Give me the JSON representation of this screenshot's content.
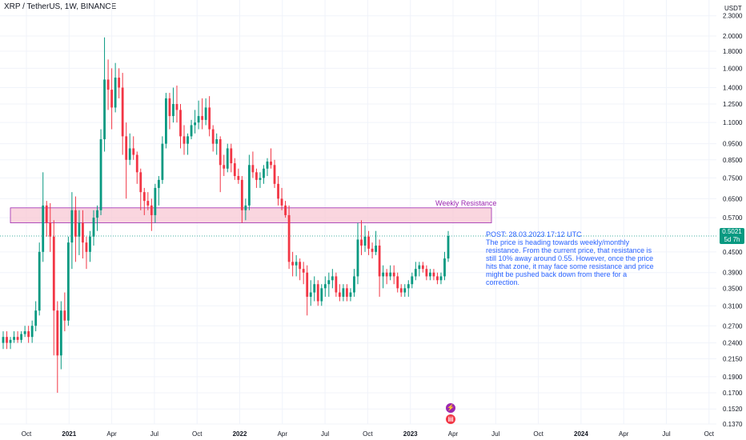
{
  "header": {
    "title": "XRP / TetherUS, 1W, BINANCE",
    "axis_unit": "USDT"
  },
  "colors": {
    "up": "#089981",
    "down": "#f23645",
    "resistance_fill": "#f8c8d4",
    "resistance_border": "#9c27b0",
    "annotation": "#2962ff",
    "current_line": "#089981"
  },
  "resistance": {
    "label": "Weekly Resistance",
    "low": 0.55,
    "high": 0.61
  },
  "current_price": {
    "value": "0.5021",
    "countdown": "5d 7h",
    "level": 0.5021
  },
  "annotation": {
    "title": "POST: 28.03.2023 17:12 UTC",
    "text": "The price is heading towards weekly/monthly resistance. From the current price, that resistance is still 10% away around 0.55. However, once the price hits that zone, it may face some resistance and price might be pushed back down from there for a correction."
  },
  "icons": [
    {
      "name": "lightning-icon",
      "glyph": "⚡",
      "color": "#9c27b0"
    },
    {
      "name": "us-flag-icon",
      "glyph": "▤",
      "color": "#f23645"
    }
  ],
  "chart_data": {
    "type": "candlestick",
    "y_scale": "log",
    "ylim": [
      0.137,
      2.4
    ],
    "y_ticks": [
      "2.3000",
      "2.0000",
      "1.8000",
      "1.6000",
      "1.4000",
      "1.2500",
      "1.1000",
      "0.9500",
      "0.8500",
      "0.7500",
      "0.6500",
      "0.5700",
      "0.5021",
      "0.4500",
      "0.3900",
      "0.3500",
      "0.3100",
      "0.2700",
      "0.2400",
      "0.2150",
      "0.1900",
      "0.1700",
      "0.1520",
      "0.1370"
    ],
    "x_ticks": [
      "Oct",
      "2021",
      "Apr",
      "Jul",
      "Oct",
      "2022",
      "Apr",
      "Jul",
      "Oct",
      "2023",
      "Apr",
      "Jul",
      "Oct",
      "2024",
      "Apr",
      "Jul",
      "Oct"
    ],
    "series": [
      {
        "label": "2020-09",
        "candles": [
          [
            0.24,
            0.26,
            0.23,
            0.25
          ],
          [
            0.25,
            0.26,
            0.23,
            0.24
          ],
          [
            0.24,
            0.25,
            0.23,
            0.245
          ],
          [
            0.245,
            0.26,
            0.24,
            0.25
          ]
        ]
      },
      {
        "label": "2020-10",
        "candles": [
          [
            0.25,
            0.26,
            0.24,
            0.245
          ],
          [
            0.245,
            0.26,
            0.24,
            0.255
          ],
          [
            0.255,
            0.27,
            0.25,
            0.26
          ],
          [
            0.26,
            0.27,
            0.24,
            0.25
          ]
        ]
      },
      {
        "label": "2020-11",
        "candles": [
          [
            0.25,
            0.28,
            0.24,
            0.27
          ],
          [
            0.27,
            0.32,
            0.26,
            0.3
          ],
          [
            0.3,
            0.48,
            0.29,
            0.45
          ],
          [
            0.45,
            0.78,
            0.42,
            0.62
          ]
        ]
      },
      {
        "label": "2020-12",
        "candles": [
          [
            0.62,
            0.64,
            0.5,
            0.55
          ],
          [
            0.55,
            0.63,
            0.45,
            0.5
          ],
          [
            0.5,
            0.56,
            0.22,
            0.3
          ],
          [
            0.3,
            0.32,
            0.17,
            0.22
          ]
        ]
      },
      {
        "label": "2021-01",
        "candles": [
          [
            0.22,
            0.32,
            0.2,
            0.3
          ],
          [
            0.3,
            0.34,
            0.26,
            0.28
          ],
          [
            0.28,
            0.5,
            0.27,
            0.48
          ],
          [
            0.48,
            0.68,
            0.4,
            0.6
          ]
        ]
      },
      {
        "label": "2021-02",
        "candles": [
          [
            0.6,
            0.66,
            0.42,
            0.5
          ],
          [
            0.5,
            0.6,
            0.44,
            0.55
          ],
          [
            0.55,
            0.6,
            0.43,
            0.48
          ],
          [
            0.48,
            0.5,
            0.4,
            0.45
          ]
        ]
      },
      {
        "label": "2021-03",
        "candles": [
          [
            0.45,
            0.52,
            0.42,
            0.5
          ],
          [
            0.5,
            0.6,
            0.47,
            0.57
          ],
          [
            0.57,
            0.62,
            0.52,
            0.6
          ],
          [
            0.6,
            1.05,
            0.58,
            0.98
          ]
        ]
      },
      {
        "label": "2021-04",
        "candles": [
          [
            0.98,
            1.98,
            0.9,
            1.48
          ],
          [
            1.48,
            1.7,
            1.2,
            1.38
          ],
          [
            1.38,
            1.6,
            1.05,
            1.22
          ],
          [
            1.22,
            1.66,
            1.18,
            1.5
          ]
        ]
      },
      {
        "label": "2021-05",
        "candles": [
          [
            1.5,
            1.6,
            1.3,
            1.4
          ],
          [
            1.4,
            1.55,
            0.88,
            1.0
          ],
          [
            1.0,
            1.1,
            0.65,
            0.85
          ],
          [
            0.85,
            1.02,
            0.82,
            0.92
          ]
        ]
      },
      {
        "label": "2021-06",
        "candles": [
          [
            0.92,
            1.0,
            0.85,
            0.88
          ],
          [
            0.88,
            0.9,
            0.72,
            0.78
          ],
          [
            0.78,
            0.8,
            0.6,
            0.68
          ],
          [
            0.68,
            0.7,
            0.58,
            0.64
          ]
        ]
      },
      {
        "label": "2021-07",
        "candles": [
          [
            0.64,
            0.68,
            0.6,
            0.62
          ],
          [
            0.62,
            0.65,
            0.52,
            0.58
          ],
          [
            0.58,
            0.72,
            0.55,
            0.7
          ],
          [
            0.7,
            0.76,
            0.62,
            0.74
          ]
        ]
      },
      {
        "label": "2021-08",
        "candles": [
          [
            0.74,
            1.0,
            0.72,
            0.95
          ],
          [
            0.95,
            1.35,
            0.92,
            1.3
          ],
          [
            1.3,
            1.35,
            1.05,
            1.15
          ],
          [
            1.15,
            1.4,
            1.1,
            1.25
          ]
        ]
      },
      {
        "label": "2021-09",
        "candles": [
          [
            1.25,
            1.42,
            1.1,
            1.2
          ],
          [
            1.2,
            1.25,
            0.92,
            1.0
          ],
          [
            1.0,
            1.08,
            0.88,
            0.95
          ],
          [
            0.95,
            1.02,
            0.88,
            1.0
          ]
        ]
      },
      {
        "label": "2021-10",
        "candles": [
          [
            1.0,
            1.12,
            0.98,
            1.08
          ],
          [
            1.08,
            1.2,
            1.02,
            1.1
          ],
          [
            1.1,
            1.28,
            1.05,
            1.15
          ],
          [
            1.15,
            1.3,
            1.05,
            1.12
          ]
        ]
      },
      {
        "label": "2021-11",
        "candles": [
          [
            1.12,
            1.3,
            1.08,
            1.22
          ],
          [
            1.22,
            1.32,
            1.0,
            1.05
          ],
          [
            1.05,
            1.08,
            0.9,
            0.95
          ],
          [
            0.95,
            1.02,
            0.88,
            0.98
          ]
        ]
      },
      {
        "label": "2021-12",
        "candles": [
          [
            0.98,
            1.0,
            0.68,
            0.82
          ],
          [
            0.82,
            0.88,
            0.76,
            0.8
          ],
          [
            0.8,
            0.95,
            0.78,
            0.92
          ],
          [
            0.92,
            0.95,
            0.78,
            0.83
          ]
        ]
      },
      {
        "label": "2022-01",
        "candles": [
          [
            0.83,
            0.86,
            0.74,
            0.76
          ],
          [
            0.76,
            0.8,
            0.72,
            0.74
          ],
          [
            0.74,
            0.76,
            0.55,
            0.6
          ],
          [
            0.6,
            0.65,
            0.56,
            0.62
          ]
        ]
      },
      {
        "label": "2022-02",
        "candles": [
          [
            0.62,
            0.88,
            0.6,
            0.82
          ],
          [
            0.82,
            0.9,
            0.75,
            0.78
          ],
          [
            0.78,
            0.8,
            0.7,
            0.74
          ],
          [
            0.74,
            0.78,
            0.7,
            0.75
          ]
        ]
      },
      {
        "label": "2022-03",
        "candles": [
          [
            0.75,
            0.82,
            0.72,
            0.8
          ],
          [
            0.8,
            0.86,
            0.76,
            0.84
          ],
          [
            0.84,
            0.92,
            0.8,
            0.82
          ],
          [
            0.82,
            0.85,
            0.7,
            0.72
          ]
        ]
      },
      {
        "label": "2022-04",
        "candles": [
          [
            0.72,
            0.76,
            0.62,
            0.65
          ],
          [
            0.65,
            0.7,
            0.6,
            0.62
          ],
          [
            0.62,
            0.64,
            0.57,
            0.58
          ],
          [
            0.58,
            0.62,
            0.4,
            0.42
          ]
        ]
      },
      {
        "label": "2022-05",
        "candles": [
          [
            0.42,
            0.45,
            0.38,
            0.41
          ],
          [
            0.41,
            0.44,
            0.38,
            0.42
          ],
          [
            0.42,
            0.43,
            0.37,
            0.4
          ],
          [
            0.4,
            0.42,
            0.36,
            0.39
          ]
        ]
      },
      {
        "label": "2022-06",
        "candles": [
          [
            0.39,
            0.41,
            0.29,
            0.33
          ],
          [
            0.33,
            0.37,
            0.31,
            0.34
          ],
          [
            0.34,
            0.38,
            0.32,
            0.36
          ],
          [
            0.36,
            0.37,
            0.31,
            0.32
          ]
        ]
      },
      {
        "label": "2022-07",
        "candles": [
          [
            0.32,
            0.36,
            0.31,
            0.35
          ],
          [
            0.35,
            0.38,
            0.33,
            0.36
          ],
          [
            0.36,
            0.39,
            0.33,
            0.37
          ],
          [
            0.37,
            0.4,
            0.35,
            0.38
          ]
        ]
      },
      {
        "label": "2022-08",
        "candles": [
          [
            0.38,
            0.39,
            0.33,
            0.34
          ],
          [
            0.34,
            0.36,
            0.32,
            0.33
          ],
          [
            0.33,
            0.36,
            0.32,
            0.35
          ],
          [
            0.35,
            0.36,
            0.32,
            0.33
          ]
        ]
      },
      {
        "label": "2022-09",
        "candles": [
          [
            0.33,
            0.35,
            0.32,
            0.34
          ],
          [
            0.34,
            0.4,
            0.33,
            0.38
          ],
          [
            0.38,
            0.55,
            0.36,
            0.49
          ],
          [
            0.49,
            0.56,
            0.44,
            0.47
          ]
        ]
      },
      {
        "label": "2022-10",
        "candles": [
          [
            0.47,
            0.54,
            0.45,
            0.5
          ],
          [
            0.5,
            0.52,
            0.44,
            0.46
          ],
          [
            0.46,
            0.48,
            0.43,
            0.45
          ],
          [
            0.45,
            0.52,
            0.44,
            0.47
          ]
        ]
      },
      {
        "label": "2022-11",
        "candles": [
          [
            0.47,
            0.49,
            0.33,
            0.38
          ],
          [
            0.38,
            0.41,
            0.35,
            0.39
          ],
          [
            0.39,
            0.4,
            0.36,
            0.38
          ],
          [
            0.38,
            0.41,
            0.37,
            0.39
          ]
        ]
      },
      {
        "label": "2022-12",
        "candles": [
          [
            0.39,
            0.41,
            0.36,
            0.38
          ],
          [
            0.38,
            0.39,
            0.34,
            0.35
          ],
          [
            0.35,
            0.36,
            0.33,
            0.34
          ],
          [
            0.34,
            0.36,
            0.33,
            0.35
          ]
        ]
      },
      {
        "label": "2023-01",
        "candles": [
          [
            0.35,
            0.37,
            0.33,
            0.36
          ],
          [
            0.36,
            0.39,
            0.35,
            0.38
          ],
          [
            0.38,
            0.42,
            0.37,
            0.4
          ],
          [
            0.4,
            0.42,
            0.38,
            0.41
          ]
        ]
      },
      {
        "label": "2023-02",
        "candles": [
          [
            0.41,
            0.42,
            0.39,
            0.4
          ],
          [
            0.4,
            0.41,
            0.37,
            0.38
          ],
          [
            0.38,
            0.4,
            0.37,
            0.39
          ],
          [
            0.39,
            0.4,
            0.37,
            0.38
          ]
        ]
      },
      {
        "label": "2023-03",
        "candles": [
          [
            0.38,
            0.39,
            0.36,
            0.37
          ],
          [
            0.37,
            0.39,
            0.36,
            0.38
          ],
          [
            0.38,
            0.45,
            0.37,
            0.43
          ],
          [
            0.43,
            0.52,
            0.42,
            0.5021
          ]
        ]
      }
    ]
  }
}
